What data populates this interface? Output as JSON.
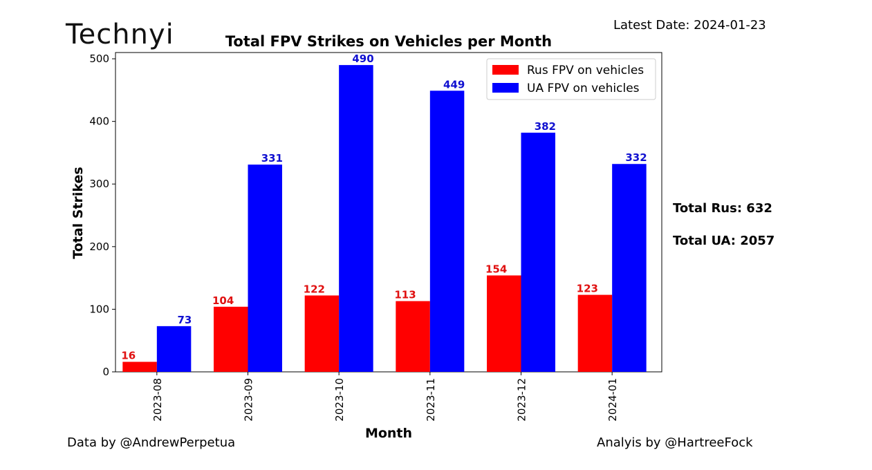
{
  "header": {
    "logo_text": "Technyi",
    "latest_date": "Latest Date: 2024-01-23"
  },
  "totals": {
    "rus": "Total Rus: 632",
    "ua": "Total UA: 2057"
  },
  "footer": {
    "data_credit": "Data by @AndrewPerpetua",
    "analysis_credit": "Analyis by @HartreeFock"
  },
  "colors": {
    "rus": "#ff0000",
    "ua": "#0000ff",
    "rus_label": "#e01010",
    "ua_label": "#1010d0"
  },
  "chart_data": {
    "type": "bar",
    "title": "Total FPV Strikes on Vehicles per Month",
    "xlabel": "Month",
    "ylabel": "Total Strikes",
    "ylim": [
      0,
      510
    ],
    "yticks": [
      0,
      100,
      200,
      300,
      400,
      500
    ],
    "categories": [
      "2023-08",
      "2023-09",
      "2023-10",
      "2023-11",
      "2023-12",
      "2024-01"
    ],
    "series": [
      {
        "name": "Rus FPV on vehicles",
        "color": "#ff0000",
        "values": [
          16,
          104,
          122,
          113,
          154,
          123
        ]
      },
      {
        "name": "UA FPV on vehicles",
        "color": "#0000ff",
        "values": [
          73,
          331,
          490,
          449,
          382,
          332
        ]
      }
    ],
    "legend": "top-right",
    "grid": false
  }
}
